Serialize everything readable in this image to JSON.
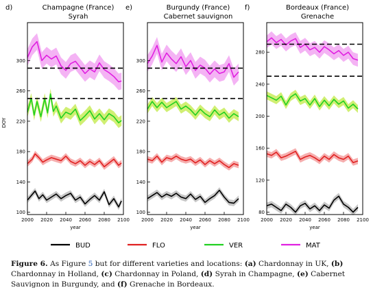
{
  "chart_data": [
    {
      "type": "line",
      "panel_label": "d)",
      "title": "Champagne (France)",
      "subtitle": "Syrah",
      "ylabel": "DOY",
      "xlabel": "year",
      "xlim": [
        2000,
        2100
      ],
      "ylim": [
        97,
        350
      ],
      "xticks": [
        "2000",
        "2020",
        "2040",
        "2060",
        "2080",
        "2100"
      ],
      "yticks": [
        "100",
        "140",
        "180",
        "220",
        "260",
        "300"
      ],
      "dashed_lines": [
        290,
        250
      ],
      "series": [
        {
          "name": "MAT",
          "color": "#e020e0",
          "band": "#f2a6f2",
          "spread": 11,
          "x": [
            2000,
            2005,
            2010,
            2015,
            2020,
            2025,
            2030,
            2035,
            2040,
            2045,
            2050,
            2055,
            2060,
            2065,
            2070,
            2075,
            2080,
            2085,
            2090,
            2095,
            2098
          ],
          "y": [
            304,
            318,
            325,
            300,
            307,
            302,
            306,
            293,
            287,
            296,
            299,
            291,
            283,
            289,
            285,
            297,
            288,
            284,
            279,
            272,
            273
          ]
        },
        {
          "name": "VER",
          "color": "#20d020",
          "band": "#c8ec5a",
          "spread": 7,
          "x": [
            2000,
            2004,
            2007,
            2010,
            2014,
            2018,
            2021,
            2024,
            2027,
            2030,
            2035,
            2040,
            2045,
            2050,
            2055,
            2060,
            2065,
            2070,
            2075,
            2080,
            2085,
            2090,
            2095,
            2098
          ],
          "y": [
            232,
            250,
            228,
            246,
            226,
            250,
            231,
            256,
            233,
            240,
            224,
            232,
            229,
            236,
            221,
            227,
            234,
            223,
            230,
            222,
            230,
            226,
            218,
            221
          ]
        },
        {
          "name": "FLO",
          "color": "#e02020",
          "band": "#f4a0a0",
          "spread": 4,
          "x": [
            2000,
            2005,
            2008,
            2012,
            2016,
            2020,
            2025,
            2030,
            2035,
            2040,
            2045,
            2050,
            2055,
            2060,
            2065,
            2070,
            2075,
            2080,
            2085,
            2090,
            2095,
            2098
          ],
          "y": [
            164,
            170,
            177,
            172,
            166,
            169,
            172,
            170,
            168,
            174,
            167,
            164,
            168,
            162,
            167,
            163,
            168,
            160,
            165,
            170,
            162,
            165
          ]
        },
        {
          "name": "BUD",
          "color": "#000000",
          "band": "#bdbdbd",
          "spread": 4,
          "x": [
            2000,
            2004,
            2008,
            2012,
            2016,
            2020,
            2025,
            2030,
            2035,
            2040,
            2045,
            2050,
            2055,
            2060,
            2065,
            2070,
            2075,
            2080,
            2085,
            2090,
            2095,
            2098
          ],
          "y": [
            116,
            122,
            128,
            118,
            123,
            116,
            120,
            124,
            118,
            122,
            125,
            116,
            120,
            111,
            117,
            122,
            116,
            127,
            110,
            118,
            107,
            115
          ]
        }
      ]
    },
    {
      "type": "line",
      "panel_label": "e)",
      "title": "Burgundy (France)",
      "subtitle": "Cabernet sauvignon",
      "ylabel": "",
      "xlabel": "year",
      "xlim": [
        2000,
        2100
      ],
      "ylim": [
        97,
        350
      ],
      "xticks": [
        "2000",
        "2020",
        "2040",
        "2060",
        "2080",
        "2100"
      ],
      "yticks": [
        "100",
        "140",
        "180",
        "220",
        "260",
        "300"
      ],
      "dashed_lines": [
        290,
        250
      ],
      "series": [
        {
          "name": "MAT",
          "color": "#e020e0",
          "band": "#f2a6f2",
          "spread": 11,
          "x": [
            2000,
            2005,
            2010,
            2015,
            2020,
            2025,
            2030,
            2035,
            2040,
            2045,
            2050,
            2055,
            2060,
            2065,
            2070,
            2075,
            2080,
            2085,
            2090,
            2095
          ],
          "y": [
            296,
            306,
            320,
            298,
            310,
            302,
            296,
            305,
            292,
            300,
            287,
            294,
            290,
            282,
            289,
            283,
            285,
            296,
            278,
            285
          ]
        },
        {
          "name": "VER",
          "color": "#20d020",
          "band": "#c8ec5a",
          "spread": 6,
          "x": [
            2000,
            2005,
            2010,
            2015,
            2020,
            2025,
            2030,
            2035,
            2040,
            2045,
            2050,
            2055,
            2060,
            2065,
            2070,
            2075,
            2080,
            2085,
            2090,
            2095
          ],
          "y": [
            236,
            246,
            238,
            245,
            238,
            242,
            246,
            236,
            240,
            235,
            228,
            236,
            230,
            226,
            235,
            228,
            232,
            224,
            230,
            226
          ]
        },
        {
          "name": "FLO",
          "color": "#e02020",
          "band": "#f4a0a0",
          "spread": 4,
          "x": [
            2000,
            2005,
            2010,
            2015,
            2020,
            2025,
            2030,
            2035,
            2040,
            2045,
            2050,
            2055,
            2060,
            2065,
            2070,
            2075,
            2080,
            2085,
            2090,
            2095
          ],
          "y": [
            170,
            168,
            174,
            166,
            172,
            170,
            174,
            170,
            168,
            170,
            165,
            169,
            163,
            168,
            164,
            168,
            163,
            159,
            164,
            162
          ]
        },
        {
          "name": "BUD",
          "color": "#000000",
          "band": "#bdbdbd",
          "spread": 4,
          "x": [
            2000,
            2005,
            2010,
            2015,
            2020,
            2025,
            2030,
            2035,
            2040,
            2045,
            2050,
            2055,
            2060,
            2065,
            2070,
            2075,
            2080,
            2085,
            2090,
            2095
          ],
          "y": [
            118,
            122,
            126,
            120,
            124,
            121,
            125,
            120,
            118,
            124,
            117,
            121,
            113,
            118,
            122,
            129,
            120,
            113,
            112,
            118
          ]
        }
      ]
    },
    {
      "type": "line",
      "panel_label": "f)",
      "title": "Bordeaux (France)",
      "subtitle": "Grenache",
      "ylabel": "",
      "xlabel": "year",
      "xlim": [
        2000,
        2100
      ],
      "ylim": [
        77,
        317
      ],
      "xticks": [
        "2000",
        "2020",
        "2040",
        "2060",
        "2080",
        "2100"
      ],
      "yticks": [
        "80",
        "120",
        "160",
        "200",
        "240",
        "280"
      ],
      "dashed_lines": [
        290,
        250
      ],
      "series": [
        {
          "name": "MAT",
          "color": "#e020e0",
          "band": "#f2a6f2",
          "spread": 8,
          "x": [
            2000,
            2005,
            2010,
            2015,
            2020,
            2025,
            2030,
            2035,
            2040,
            2045,
            2050,
            2055,
            2060,
            2065,
            2070,
            2075,
            2080,
            2085,
            2090,
            2095
          ],
          "y": [
            293,
            298,
            292,
            296,
            289,
            294,
            297,
            286,
            290,
            283,
            286,
            280,
            287,
            283,
            278,
            282,
            276,
            280,
            272,
            270
          ]
        },
        {
          "name": "VER",
          "color": "#20d020",
          "band": "#c8ec5a",
          "spread": 5,
          "x": [
            2000,
            2005,
            2010,
            2015,
            2020,
            2025,
            2030,
            2035,
            2040,
            2045,
            2050,
            2055,
            2060,
            2065,
            2070,
            2075,
            2080,
            2085,
            2090,
            2095
          ],
          "y": [
            226,
            223,
            220,
            225,
            214,
            224,
            228,
            219,
            222,
            214,
            222,
            212,
            220,
            213,
            221,
            215,
            219,
            210,
            215,
            209
          ]
        },
        {
          "name": "FLO",
          "color": "#e02020",
          "band": "#f4a0a0",
          "spread": 4,
          "x": [
            2000,
            2005,
            2010,
            2015,
            2020,
            2025,
            2030,
            2035,
            2040,
            2045,
            2050,
            2055,
            2060,
            2065,
            2070,
            2075,
            2080,
            2085,
            2090,
            2095
          ],
          "y": [
            153,
            151,
            155,
            148,
            150,
            153,
            156,
            146,
            149,
            151,
            148,
            144,
            150,
            146,
            152,
            148,
            146,
            150,
            142,
            144
          ]
        },
        {
          "name": "BUD",
          "color": "#000000",
          "band": "#bdbdbd",
          "spread": 4,
          "x": [
            2000,
            2005,
            2010,
            2015,
            2020,
            2025,
            2030,
            2035,
            2040,
            2045,
            2050,
            2055,
            2060,
            2065,
            2070,
            2075,
            2080,
            2085,
            2090,
            2095
          ],
          "y": [
            88,
            90,
            86,
            82,
            90,
            86,
            80,
            88,
            91,
            84,
            88,
            82,
            89,
            85,
            95,
            100,
            90,
            86,
            80,
            86
          ]
        }
      ]
    }
  ],
  "legend": [
    {
      "label": "BUD",
      "color": "#000000"
    },
    {
      "label": "FLO",
      "color": "#e02020"
    },
    {
      "label": "VER",
      "color": "#20d020"
    },
    {
      "label": "MAT",
      "color": "#e020e0"
    }
  ],
  "caption": {
    "label": "Figure 6.",
    "t1": " As Figure ",
    "ref": "5",
    "t2": " but for different varieties and locations: ",
    "parts": [
      [
        "(a)",
        " Chardonnay in UK, "
      ],
      [
        "(b)",
        " Chardonnay in Holland, "
      ],
      [
        "(c)",
        " Chardonnay in Poland, "
      ],
      [
        "(d)",
        " Syrah in Champagne, "
      ],
      [
        "(e)",
        " Cabernet Sauvignon in Burgundy, and "
      ],
      [
        "(f)",
        " Grenache in Bordeaux."
      ]
    ]
  }
}
